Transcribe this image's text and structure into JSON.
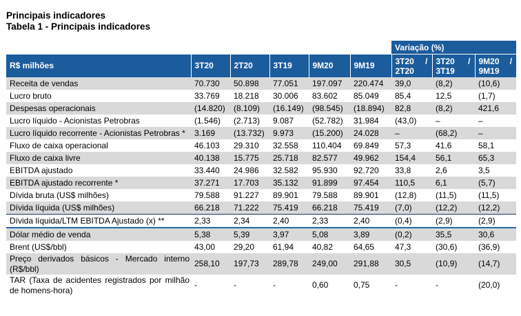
{
  "page": {
    "title": "Principais indicadores",
    "subtitle": "Tabela 1 - Principais indicadores"
  },
  "colors": {
    "header_blue": "#1B5C9D",
    "stripe_gray": "#D9D9D9",
    "divider_dark_blue": "#17375E",
    "divider_blue": "#2368A8"
  },
  "table": {
    "variation_header": "Variação (%)",
    "unit_header": "R$ milhões",
    "period_headers": [
      "3T20",
      "2T20",
      "3T19",
      "9M20",
      "9M19"
    ],
    "variation_columns": [
      {
        "num": "3T20",
        "slash": "/",
        "den": "2T20"
      },
      {
        "num": "3T20",
        "slash": "/",
        "den": "3T19"
      },
      {
        "num": "9M20",
        "slash": "/",
        "den": "9M19"
      }
    ],
    "rows": [
      {
        "label": "Receita de vendas",
        "values": [
          "70.730",
          "50.898",
          "77.051",
          "197.097",
          "220.474",
          "39,0",
          "(8,2)",
          "(10,6)"
        ]
      },
      {
        "label": "Lucro bruto",
        "values": [
          "33.769",
          "18.218",
          "30.006",
          "83.602",
          "85.049",
          "85,4",
          "12,5",
          "(1,7)"
        ]
      },
      {
        "label": "Despesas operacionais",
        "values": [
          "(14.820)",
          "(8.109)",
          "(16.149)",
          "(98.545)",
          "(18.894)",
          "82,8",
          "(8,2)",
          "421,6"
        ]
      },
      {
        "label": "Lucro líquido - Acionistas Petrobras",
        "values": [
          "(1.546)",
          "(2.713)",
          "9.087",
          "(52.782)",
          "31.984",
          "(43,0)",
          "–",
          "–"
        ]
      },
      {
        "label": "Lucro líquido recorrente - Acionistas Petrobras *",
        "values": [
          "3.169",
          "(13.732)",
          "9.973",
          "(15.200)",
          "24.028",
          "–",
          "(68,2)",
          "–"
        ]
      },
      {
        "label": "Fluxo de caixa operacional",
        "values": [
          "46.103",
          "29.310",
          "32.558",
          "110.404",
          "69.849",
          "57,3",
          "41,6",
          "58,1"
        ]
      },
      {
        "label": "Fluxo de caixa livre",
        "values": [
          "40.138",
          "15.775",
          "25.718",
          "82.577",
          "49.962",
          "154,4",
          "56,1",
          "65,3"
        ]
      },
      {
        "label": "EBITDA ajustado",
        "values": [
          "33.440",
          "24.986",
          "32.582",
          "95.930",
          "92.720",
          "33,8",
          "2,6",
          "3,5"
        ]
      },
      {
        "label": "EBITDA ajustado recorrente *",
        "values": [
          "37.271",
          "17.703",
          "35.132",
          "91.899",
          "97.454",
          "110,5",
          "6,1",
          "(5,7)"
        ]
      },
      {
        "label": "Dívida bruta (US$ milhões)",
        "values": [
          "79.588",
          "91.227",
          "89.901",
          "79.588",
          "89.901",
          "(12,8)",
          "(11,5)",
          "(11,5)"
        ]
      },
      {
        "label": "Dívida líquida (US$ milhões)",
        "values": [
          "66.218",
          "71.222",
          "75.419",
          "66.218",
          "75.419",
          "(7,0)",
          "(12,2)",
          "(12,2)"
        ]
      },
      {
        "label": "Dívida líquida/LTM EBITDA Ajustado (x) **",
        "values": [
          "2,33",
          "2,34",
          "2,40",
          "2,33",
          "2,40",
          "(0,4)",
          "(2,9)",
          "(2,9)"
        ]
      },
      {
        "label": "Dólar médio de venda",
        "values": [
          "5,38",
          "5,39",
          "3,97",
          "5,08",
          "3,89",
          "(0,2)",
          "35,5",
          "30,6"
        ]
      },
      {
        "label": "Brent (US$/bbl)",
        "values": [
          "43,00",
          "29,20",
          "61,94",
          "40,82",
          "64,65",
          "47,3",
          "(30,6)",
          "(36,9)"
        ]
      },
      {
        "label": "Preço derivados básicos - Mercado interno (R$/bbl)",
        "values": [
          "258,10",
          "197,73",
          "289,78",
          "249,00",
          "291,88",
          "30,5",
          "(10,9)",
          "(14,7)"
        ]
      },
      {
        "label": "TAR (Taxa de acidentes registrados por milhão de homens-hora)",
        "values": [
          "-",
          "-",
          "-",
          "0,60",
          "0,75",
          "-",
          "-",
          "(20,0)"
        ]
      }
    ]
  }
}
